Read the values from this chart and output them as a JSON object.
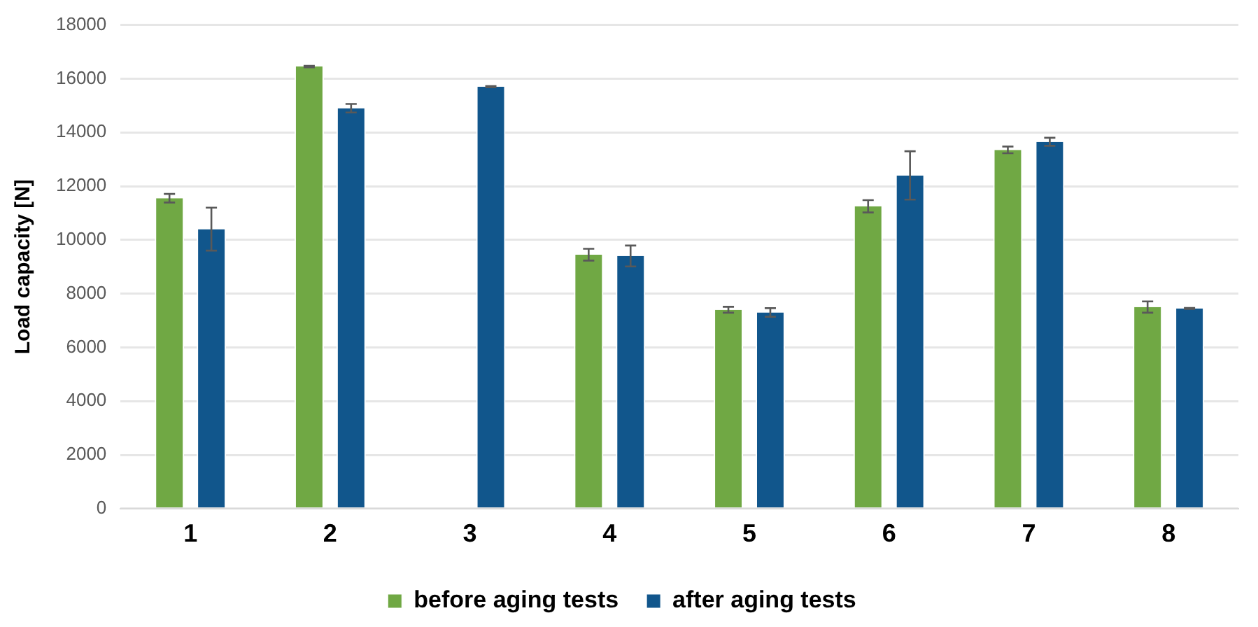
{
  "chart_data": {
    "type": "bar",
    "ylabel": "Load capacity [N]",
    "categories": [
      "1",
      "2",
      "3",
      "4",
      "5",
      "6",
      "7",
      "8"
    ],
    "series": [
      {
        "name": "before aging tests",
        "color": "#70a844",
        "values": [
          11550,
          16450,
          null,
          9450,
          7400,
          11250,
          13350,
          7500
        ],
        "errors": [
          160,
          30,
          null,
          220,
          110,
          230,
          125,
          210
        ]
      },
      {
        "name": "after aging tests",
        "color": "#11568c",
        "values": [
          10400,
          14900,
          15700,
          9400,
          7300,
          12400,
          13650,
          7450
        ],
        "errors": [
          800,
          160,
          20,
          390,
          160,
          900,
          150,
          20
        ]
      }
    ],
    "ylim": [
      0,
      18000
    ],
    "yticks": [
      0,
      2000,
      4000,
      6000,
      8000,
      10000,
      12000,
      14000,
      16000,
      18000
    ],
    "grid": "y",
    "legend": "bottom"
  }
}
